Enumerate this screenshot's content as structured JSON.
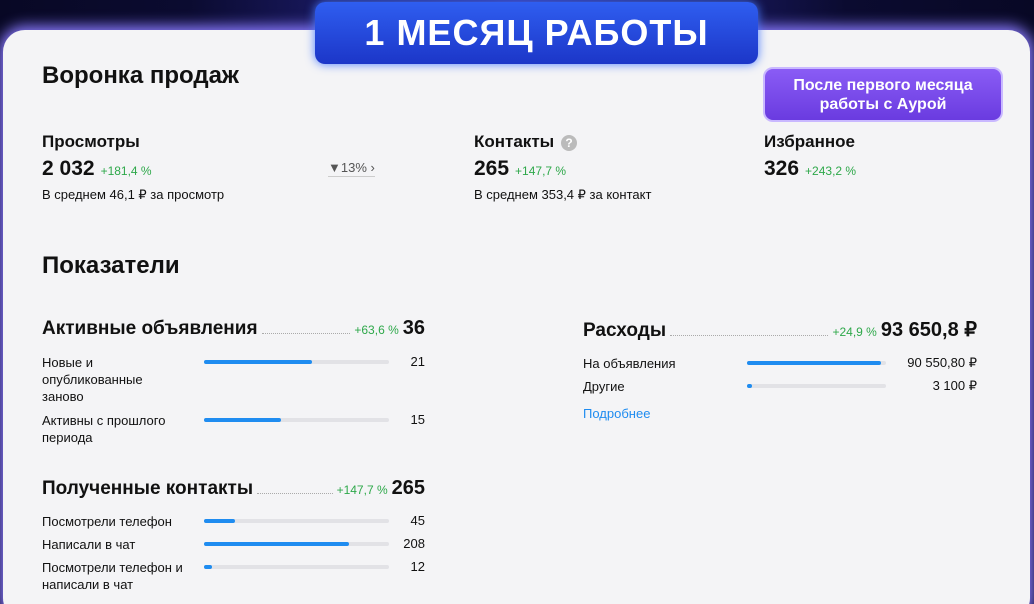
{
  "banner": "1 МЕСЯЦ РАБОТЫ",
  "button_lines": [
    "После первого месяца",
    "работы с Аурой"
  ],
  "funnel": {
    "title": "Воронка продаж",
    "conversion": "13%",
    "metrics": [
      {
        "label": "Просмотры",
        "value": "2 032",
        "change": "+181,4 %",
        "note": "В среднем 46,1 ₽ за просмотр"
      },
      {
        "label": "Контакты",
        "value": "265",
        "change": "+147,7 %",
        "note": "В среднем 353,4 ₽ за контакт"
      },
      {
        "label": "Избранное",
        "value": "326",
        "change": "+243,2 %"
      }
    ]
  },
  "indicators": {
    "title": "Показатели",
    "groups": [
      {
        "title": "Активные объявления",
        "change": "+63,6 %",
        "total": 36,
        "rows": [
          {
            "label": "Новые и опубликованные заново",
            "value": 21
          },
          {
            "label": "Активны с прошлого периода",
            "value": 15
          }
        ]
      },
      {
        "title": "Полученные контакты",
        "change": "+147,7 %",
        "total": 265,
        "rows": [
          {
            "label": "Посмотрели телефон",
            "value": 45
          },
          {
            "label": "Написали в чат",
            "value": 208
          },
          {
            "label": "Посмотрели телефон и написали в чат",
            "value": 12
          }
        ]
      },
      {
        "title": "Расходы",
        "change": "+24,9 %",
        "total": {
          "value": 93650.8,
          "label": "93 650,8 ₽"
        },
        "rows": [
          {
            "label": "На объявления",
            "value": {
              "value": 90550.8,
              "label": "90 550,80 ₽"
            }
          },
          {
            "label": "Другие",
            "value": {
              "value": 3100,
              "label": "3 100 ₽"
            }
          }
        ],
        "link": "Подробнее"
      }
    ]
  }
}
